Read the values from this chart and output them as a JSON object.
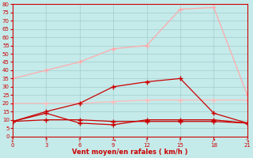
{
  "x": [
    0,
    3,
    6,
    9,
    12,
    15,
    18,
    21
  ],
  "line1": [
    35,
    40,
    45,
    53,
    55,
    77,
    78,
    25
  ],
  "line2": [
    20,
    20,
    20,
    21,
    22,
    22,
    22,
    22
  ],
  "line3": [
    9,
    15,
    20,
    30,
    33,
    35,
    14,
    8
  ],
  "line4": [
    9,
    14,
    8,
    7,
    10,
    10,
    10,
    8
  ],
  "line5": [
    9,
    10,
    10,
    9,
    9,
    9,
    9,
    8
  ],
  "color1": "#ffaaaa",
  "color2": "#ffbbbb",
  "color3": "#cc0000",
  "color4": "#cc0000",
  "color5": "#cc0000",
  "bg_color": "#c5eaea",
  "grid_color": "#a0cccc",
  "text_color": "#cc0000",
  "xlabel": "Vent moyen/en rafales ( km/h )",
  "ylim": [
    0,
    80
  ],
  "xlim": [
    0,
    21
  ],
  "yticks": [
    0,
    5,
    10,
    15,
    20,
    25,
    30,
    35,
    40,
    45,
    50,
    55,
    60,
    65,
    70,
    75,
    80
  ],
  "xticks": [
    0,
    3,
    6,
    9,
    12,
    15,
    18,
    21
  ],
  "xtick_symbols": [
    "↓",
    "↑",
    "↑",
    "→",
    "↑",
    "↑",
    "↗",
    "↘"
  ]
}
